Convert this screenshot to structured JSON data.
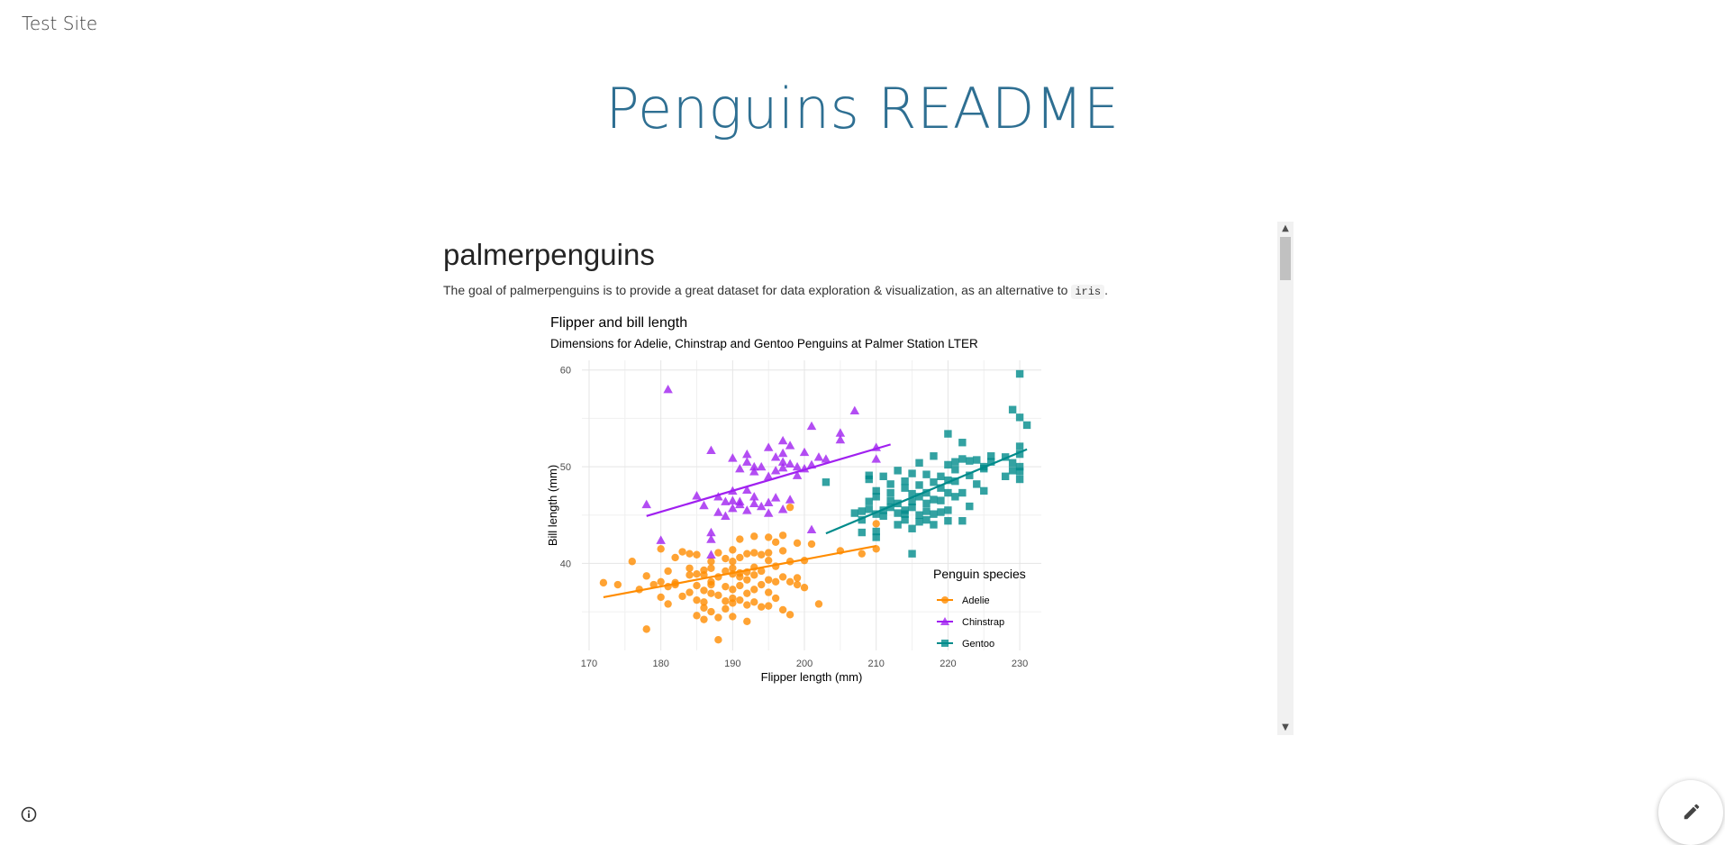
{
  "site": {
    "name": "Test Site"
  },
  "page": {
    "title": "Penguins README"
  },
  "readme": {
    "heading": "palmerpenguins",
    "text_before_code": "The goal of palmerpenguins is to provide a great dataset for data exploration & visualization, as an alternative to ",
    "code": "iris",
    "text_after_code": "."
  },
  "icons": {
    "info": "info-icon",
    "edit": "pencil-icon",
    "scroll_up": "chevron-up-icon",
    "scroll_down": "chevron-down-icon"
  },
  "chart_data": {
    "type": "scatter",
    "title": "Flipper and bill length",
    "subtitle": "Dimensions for Adelie, Chinstrap and Gentoo Penguins at Palmer Station LTER",
    "xlabel": "Flipper length (mm)",
    "ylabel": "Bill length (mm)",
    "xlim": [
      169,
      233
    ],
    "ylim": [
      31,
      61
    ],
    "xticks": [
      170,
      180,
      190,
      200,
      210,
      220,
      230
    ],
    "yticks": [
      40,
      50,
      60
    ],
    "grid": true,
    "legend": {
      "title": "Penguin species",
      "position": "bottom-right"
    },
    "series": [
      {
        "name": "Adelie",
        "color": "#ff8c00",
        "marker": "circle",
        "trend": [
          [
            172,
            36.5
          ],
          [
            210,
            41.8
          ]
        ],
        "points": [
          [
            172,
            38.0
          ],
          [
            174,
            37.8
          ],
          [
            176,
            40.2
          ],
          [
            177,
            37.3
          ],
          [
            178,
            38.7
          ],
          [
            178,
            33.2
          ],
          [
            179,
            37.8
          ],
          [
            180,
            38.1
          ],
          [
            180,
            36.5
          ],
          [
            180,
            41.5
          ],
          [
            181,
            37.6
          ],
          [
            181,
            39.2
          ],
          [
            181,
            35.8
          ],
          [
            182,
            38.0
          ],
          [
            182,
            40.6
          ],
          [
            182,
            37.8
          ],
          [
            183,
            36.6
          ],
          [
            183,
            41.2
          ],
          [
            184,
            38.8
          ],
          [
            184,
            37.0
          ],
          [
            184,
            41.0
          ],
          [
            184,
            39.5
          ],
          [
            185,
            34.6
          ],
          [
            185,
            37.7
          ],
          [
            185,
            38.9
          ],
          [
            185,
            36.2
          ],
          [
            185,
            40.9
          ],
          [
            186,
            36.0
          ],
          [
            186,
            38.8
          ],
          [
            186,
            35.4
          ],
          [
            186,
            37.2
          ],
          [
            186,
            39.3
          ],
          [
            186,
            34.2
          ],
          [
            187,
            37.8
          ],
          [
            187,
            39.5
          ],
          [
            187,
            36.9
          ],
          [
            187,
            40.2
          ],
          [
            187,
            35.0
          ],
          [
            187,
            38.1
          ],
          [
            188,
            36.7
          ],
          [
            188,
            41.1
          ],
          [
            188,
            38.6
          ],
          [
            188,
            34.4
          ],
          [
            188,
            32.1
          ],
          [
            189,
            39.2
          ],
          [
            189,
            37.6
          ],
          [
            189,
            40.5
          ],
          [
            189,
            36.1
          ],
          [
            189,
            35.3
          ],
          [
            190,
            39.5
          ],
          [
            190,
            36.4
          ],
          [
            190,
            38.9
          ],
          [
            190,
            41.4
          ],
          [
            190,
            37.3
          ],
          [
            190,
            34.5
          ],
          [
            190,
            40.2
          ],
          [
            190,
            35.9
          ],
          [
            191,
            38.6
          ],
          [
            191,
            39.0
          ],
          [
            191,
            36.2
          ],
          [
            191,
            40.6
          ],
          [
            191,
            37.7
          ],
          [
            191,
            42.5
          ],
          [
            192,
            39.1
          ],
          [
            192,
            35.7
          ],
          [
            192,
            38.3
          ],
          [
            192,
            41.0
          ],
          [
            192,
            36.9
          ],
          [
            192,
            34.0
          ],
          [
            193,
            38.8
          ],
          [
            193,
            41.1
          ],
          [
            193,
            37.3
          ],
          [
            193,
            36.0
          ],
          [
            193,
            39.6
          ],
          [
            193,
            42.8
          ],
          [
            194,
            37.8
          ],
          [
            194,
            40.9
          ],
          [
            194,
            35.5
          ],
          [
            194,
            39.2
          ],
          [
            195,
            41.1
          ],
          [
            195,
            37.0
          ],
          [
            195,
            38.3
          ],
          [
            195,
            35.6
          ],
          [
            195,
            42.7
          ],
          [
            195,
            40.3
          ],
          [
            196,
            38.1
          ],
          [
            196,
            42.2
          ],
          [
            196,
            39.7
          ],
          [
            196,
            36.4
          ],
          [
            197,
            38.6
          ],
          [
            197,
            41.3
          ],
          [
            197,
            35.2
          ],
          [
            197,
            42.9
          ],
          [
            198,
            40.2
          ],
          [
            198,
            38.1
          ],
          [
            198,
            34.7
          ],
          [
            198,
            45.8
          ],
          [
            199,
            37.8
          ],
          [
            199,
            38.5
          ],
          [
            199,
            42.1
          ],
          [
            200,
            40.3
          ],
          [
            200,
            37.5
          ],
          [
            201,
            42.0
          ],
          [
            202,
            35.8
          ],
          [
            205,
            41.3
          ],
          [
            208,
            41.0
          ],
          [
            210,
            41.5
          ],
          [
            210,
            44.1
          ]
        ]
      },
      {
        "name": "Chinstrap",
        "color": "#a020f0",
        "marker": "triangle",
        "trend": [
          [
            178,
            44.9
          ],
          [
            212,
            52.3
          ]
        ],
        "points": [
          [
            178,
            46.1
          ],
          [
            180,
            42.4
          ],
          [
            181,
            58.0
          ],
          [
            185,
            47.0
          ],
          [
            186,
            46.0
          ],
          [
            187,
            43.2
          ],
          [
            187,
            42.5
          ],
          [
            187,
            40.9
          ],
          [
            187,
            51.7
          ],
          [
            188,
            45.3
          ],
          [
            188,
            46.9
          ],
          [
            189,
            44.9
          ],
          [
            189,
            46.4
          ],
          [
            190,
            45.7
          ],
          [
            190,
            46.5
          ],
          [
            190,
            47.5
          ],
          [
            190,
            50.9
          ],
          [
            191,
            46.1
          ],
          [
            191,
            49.8
          ],
          [
            191,
            46.4
          ],
          [
            192,
            45.5
          ],
          [
            192,
            47.6
          ],
          [
            192,
            50.5
          ],
          [
            192,
            51.3
          ],
          [
            193,
            46.2
          ],
          [
            193,
            49.5
          ],
          [
            193,
            50.0
          ],
          [
            193,
            46.9
          ],
          [
            194,
            50.0
          ],
          [
            194,
            45.9
          ],
          [
            195,
            46.3
          ],
          [
            195,
            49.0
          ],
          [
            195,
            45.2
          ],
          [
            195,
            52.0
          ],
          [
            196,
            49.6
          ],
          [
            196,
            46.8
          ],
          [
            196,
            51.0
          ],
          [
            197,
            50.5
          ],
          [
            197,
            49.9
          ],
          [
            197,
            52.7
          ],
          [
            197,
            51.4
          ],
          [
            197,
            45.6
          ],
          [
            198,
            46.6
          ],
          [
            198,
            50.3
          ],
          [
            198,
            52.2
          ],
          [
            199,
            50.0
          ],
          [
            199,
            49.1
          ],
          [
            200,
            49.8
          ],
          [
            200,
            51.5
          ],
          [
            201,
            50.2
          ],
          [
            201,
            54.2
          ],
          [
            201,
            43.5
          ],
          [
            202,
            51.0
          ],
          [
            203,
            50.8
          ],
          [
            205,
            53.5
          ],
          [
            205,
            52.8
          ],
          [
            207,
            55.8
          ],
          [
            210,
            50.8
          ],
          [
            210,
            52.0
          ]
        ]
      },
      {
        "name": "Gentoo",
        "color": "#008b8b",
        "marker": "square",
        "trend": [
          [
            203,
            43.1
          ],
          [
            231,
            51.8
          ]
        ],
        "points": [
          [
            203,
            48.4
          ],
          [
            207,
            45.2
          ],
          [
            208,
            43.2
          ],
          [
            208,
            44.5
          ],
          [
            208,
            45.4
          ],
          [
            209,
            45.6
          ],
          [
            209,
            48.7
          ],
          [
            209,
            46.4
          ],
          [
            209,
            49.1
          ],
          [
            210,
            42.7
          ],
          [
            210,
            43.3
          ],
          [
            210,
            45.1
          ],
          [
            210,
            47.5
          ],
          [
            210,
            46.9
          ],
          [
            211,
            44.9
          ],
          [
            211,
            45.5
          ],
          [
            211,
            49.0
          ],
          [
            212,
            46.5
          ],
          [
            212,
            45.8
          ],
          [
            212,
            47.3
          ],
          [
            212,
            48.2
          ],
          [
            213,
            45.2
          ],
          [
            213,
            44.0
          ],
          [
            213,
            46.2
          ],
          [
            213,
            49.6
          ],
          [
            214,
            45.5
          ],
          [
            214,
            45.1
          ],
          [
            214,
            47.8
          ],
          [
            214,
            48.5
          ],
          [
            214,
            44.5
          ],
          [
            215,
            46.4
          ],
          [
            215,
            47.2
          ],
          [
            215,
            43.6
          ],
          [
            215,
            49.3
          ],
          [
            215,
            45.8
          ],
          [
            215,
            41.0
          ],
          [
            216,
            45.0
          ],
          [
            216,
            46.9
          ],
          [
            216,
            48.1
          ],
          [
            216,
            44.3
          ],
          [
            216,
            50.4
          ],
          [
            217,
            47.3
          ],
          [
            217,
            45.4
          ],
          [
            217,
            49.2
          ],
          [
            217,
            46.2
          ],
          [
            217,
            44.5
          ],
          [
            218,
            46.6
          ],
          [
            218,
            48.4
          ],
          [
            218,
            45.1
          ],
          [
            218,
            51.1
          ],
          [
            218,
            44.0
          ],
          [
            219,
            47.8
          ],
          [
            219,
            45.3
          ],
          [
            219,
            49.0
          ],
          [
            219,
            46.5
          ],
          [
            220,
            48.6
          ],
          [
            220,
            50.2
          ],
          [
            220,
            45.5
          ],
          [
            220,
            47.3
          ],
          [
            220,
            44.4
          ],
          [
            220,
            53.4
          ],
          [
            221,
            50.5
          ],
          [
            221,
            48.5
          ],
          [
            221,
            46.9
          ],
          [
            221,
            49.7
          ],
          [
            222,
            47.3
          ],
          [
            222,
            50.8
          ],
          [
            222,
            44.4
          ],
          [
            222,
            52.5
          ],
          [
            223,
            49.1
          ],
          [
            223,
            45.9
          ],
          [
            223,
            50.6
          ],
          [
            224,
            48.2
          ],
          [
            224,
            50.7
          ],
          [
            225,
            49.8
          ],
          [
            225,
            50.0
          ],
          [
            225,
            47.5
          ],
          [
            226,
            50.5
          ],
          [
            226,
            51.1
          ],
          [
            228,
            51.0
          ],
          [
            228,
            49.0
          ],
          [
            229,
            49.6
          ],
          [
            229,
            55.9
          ],
          [
            229,
            50.4
          ],
          [
            230,
            50.0
          ],
          [
            230,
            51.3
          ],
          [
            230,
            49.5
          ],
          [
            230,
            48.7
          ],
          [
            230,
            52.1
          ],
          [
            230,
            55.1
          ],
          [
            230,
            59.6
          ],
          [
            231,
            54.3
          ]
        ]
      }
    ]
  }
}
